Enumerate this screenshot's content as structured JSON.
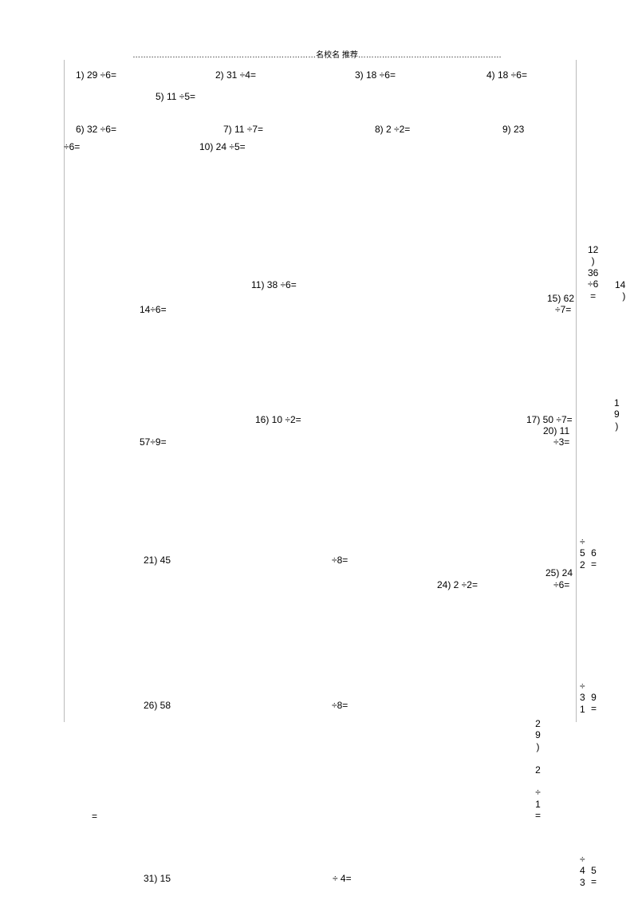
{
  "header": "……………………………………………………………名校名 推荐………………………………………………",
  "problems": {
    "r1": {
      "p1": "1) 29 ÷6=",
      "p2": "2) 31 ÷4=",
      "p3": "3) 18 ÷6=",
      "p4": "4) 18 ÷6="
    },
    "r1b": {
      "p5": "5) 11 ÷5="
    },
    "r2": {
      "p6": "6) 32 ÷6=",
      "p7": "7) 11 ÷7=",
      "p8": "8) 2 ÷2=",
      "p9": "9) 23"
    },
    "r2b": {
      "p9b": "÷6=",
      "p10": "10) 24 ÷5="
    },
    "stack12": "12\n)\n36\n÷6\n=",
    "stack14": "14\n)",
    "p11": "11) 38 ÷6=",
    "p15a": "15) 62",
    "p15b": "÷7=",
    "p146": "14÷6=",
    "stack19": "1\n9\n)",
    "p16": "16) 10 ÷2=",
    "p17": "17) 50 ÷7=",
    "p20a": "20) 11",
    "p20b": "÷3=",
    "p579": "57÷9=",
    "stack22": "÷\n5\n2",
    "stack23": "6\n=",
    "p21a": "21) 45",
    "p21b": "÷8=",
    "p25a": "25) 24",
    "p24": "24) 2 ÷2=",
    "p25b": "÷6=",
    "stack27": "÷\n3\n1",
    "stack28": "9\n=",
    "p26a": "26) 58",
    "p26b": "÷8=",
    "stack29": "2\n9\n)\n\n2\n\n÷\n1\n=",
    "peq": "=",
    "stack32": "÷\n4\n3",
    "stack33": "5\n=",
    "p31a": "31) 15",
    "p31b": "÷ 4="
  }
}
